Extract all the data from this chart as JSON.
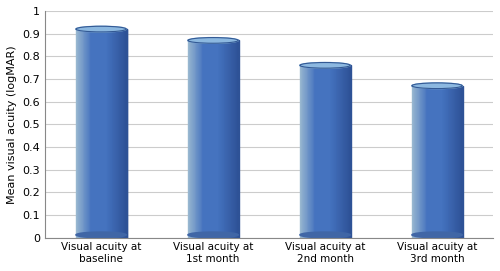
{
  "categories": [
    "Visual acuity at\nbaseline",
    "Visual acuity at\n1st month",
    "Visual acuity at\n2nd month",
    "Visual acuity at\n3rd month"
  ],
  "values": [
    0.92,
    0.87,
    0.76,
    0.67
  ],
  "bar_color_main": "#4472C4",
  "bar_color_light": "#7BAFD4",
  "bar_color_dark": "#2E5496",
  "bar_color_top": "#6FA3D0",
  "ylabel": "Mean visual acuity (logMAR)",
  "ylim": [
    0,
    1.0
  ],
  "yticks": [
    0,
    0.1,
    0.2,
    0.3,
    0.4,
    0.5,
    0.6,
    0.7,
    0.8,
    0.9,
    1
  ],
  "background_color": "#ffffff",
  "grid_color": "#cccccc",
  "bar_width": 0.45
}
